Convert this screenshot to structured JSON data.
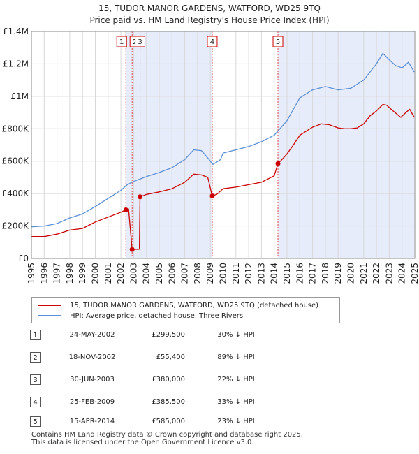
{
  "title_line1": "15, TUDOR MANOR GARDENS, WATFORD, WD25 9TQ",
  "title_line2": "Price paid vs. HM Land Registry's House Price Index (HPI)",
  "chart_data": {
    "type": "line",
    "x_range": [
      1995,
      2025
    ],
    "ylim": [
      0,
      1400000
    ],
    "y_ticks": [
      0,
      200000,
      400000,
      600000,
      800000,
      1000000,
      1200000,
      1400000
    ],
    "y_tick_labels": [
      "£0",
      "£200K",
      "£400K",
      "£600K",
      "£800K",
      "£1M",
      "£1.2M",
      "£1.4M"
    ],
    "x_ticks": [
      1995,
      1996,
      1997,
      1998,
      1999,
      2000,
      2001,
      2002,
      2003,
      2004,
      2005,
      2006,
      2007,
      2008,
      2009,
      2010,
      2011,
      2012,
      2013,
      2014,
      2015,
      2016,
      2017,
      2018,
      2019,
      2020,
      2021,
      2022,
      2023,
      2024,
      2025
    ],
    "x_tick_labels": [
      "1995",
      "1996",
      "1997",
      "1998",
      "1999",
      "2000",
      "2001",
      "2002",
      "2003",
      "2004",
      "2005",
      "2006",
      "2007",
      "2008",
      "2009",
      "2010",
      "2011",
      "2012",
      "2013",
      "2014",
      "2015",
      "2016",
      "2017",
      "2018",
      "2019",
      "2020",
      "2021",
      "2022",
      "2023",
      "2024",
      "2025"
    ],
    "shaded_periods": [
      [
        2002.39,
        2009.15
      ],
      [
        2014.29,
        2024.95
      ]
    ],
    "series": [
      {
        "name": "15, TUDOR MANOR GARDENS, WATFORD, WD25 9TQ (detached house)",
        "color": "#cc0000",
        "points": [
          [
            1995.0,
            135000
          ],
          [
            1996.0,
            135000
          ],
          [
            1997.0,
            150000
          ],
          [
            1998.0,
            175000
          ],
          [
            1999.0,
            185000
          ],
          [
            2000.0,
            225000
          ],
          [
            2001.0,
            255000
          ],
          [
            2002.0,
            285000
          ],
          [
            2002.39,
            299500
          ],
          [
            2002.6,
            305000
          ],
          [
            2002.88,
            55400
          ],
          [
            2003.0,
            56000
          ],
          [
            2003.45,
            57000
          ],
          [
            2003.5,
            380000
          ],
          [
            2004.0,
            395000
          ],
          [
            2005.0,
            410000
          ],
          [
            2006.0,
            430000
          ],
          [
            2007.0,
            470000
          ],
          [
            2007.7,
            520000
          ],
          [
            2008.3,
            515000
          ],
          [
            2008.8,
            500000
          ],
          [
            2009.15,
            385500
          ],
          [
            2009.5,
            395000
          ],
          [
            2010.0,
            430000
          ],
          [
            2011.0,
            440000
          ],
          [
            2012.0,
            455000
          ],
          [
            2013.0,
            470000
          ],
          [
            2014.0,
            510000
          ],
          [
            2014.29,
            585000
          ],
          [
            2014.6,
            610000
          ],
          [
            2015.0,
            645000
          ],
          [
            2015.5,
            700000
          ],
          [
            2016.0,
            760000
          ],
          [
            2017.0,
            810000
          ],
          [
            2017.7,
            830000
          ],
          [
            2018.3,
            825000
          ],
          [
            2019.0,
            805000
          ],
          [
            2019.5,
            800000
          ],
          [
            2020.0,
            800000
          ],
          [
            2020.5,
            805000
          ],
          [
            2021.0,
            830000
          ],
          [
            2021.5,
            880000
          ],
          [
            2022.0,
            910000
          ],
          [
            2022.5,
            950000
          ],
          [
            2022.8,
            945000
          ],
          [
            2023.3,
            910000
          ],
          [
            2023.9,
            870000
          ],
          [
            2024.3,
            900000
          ],
          [
            2024.6,
            920000
          ],
          [
            2024.95,
            870000
          ]
        ]
      },
      {
        "name": "HPI: Average price, detached house, Three Rivers",
        "color": "#5b8fd6",
        "points": [
          [
            1995.0,
            195000
          ],
          [
            1996.0,
            200000
          ],
          [
            1997.0,
            215000
          ],
          [
            1998.0,
            250000
          ],
          [
            1999.0,
            275000
          ],
          [
            2000.0,
            320000
          ],
          [
            2001.0,
            370000
          ],
          [
            2002.0,
            420000
          ],
          [
            2002.5,
            455000
          ],
          [
            2003.0,
            475000
          ],
          [
            2004.0,
            505000
          ],
          [
            2005.0,
            530000
          ],
          [
            2006.0,
            560000
          ],
          [
            2007.0,
            610000
          ],
          [
            2007.7,
            670000
          ],
          [
            2008.3,
            665000
          ],
          [
            2008.8,
            620000
          ],
          [
            2009.2,
            580000
          ],
          [
            2009.8,
            610000
          ],
          [
            2010.0,
            650000
          ],
          [
            2011.0,
            670000
          ],
          [
            2012.0,
            690000
          ],
          [
            2013.0,
            720000
          ],
          [
            2014.0,
            760000
          ],
          [
            2015.0,
            850000
          ],
          [
            2016.0,
            990000
          ],
          [
            2017.0,
            1040000
          ],
          [
            2018.0,
            1060000
          ],
          [
            2019.0,
            1040000
          ],
          [
            2020.0,
            1050000
          ],
          [
            2021.0,
            1100000
          ],
          [
            2022.0,
            1200000
          ],
          [
            2022.5,
            1265000
          ],
          [
            2023.0,
            1225000
          ],
          [
            2023.5,
            1190000
          ],
          [
            2024.0,
            1175000
          ],
          [
            2024.5,
            1210000
          ],
          [
            2024.95,
            1150000
          ]
        ]
      }
    ],
    "sale_markers": [
      {
        "label": "1",
        "x": 2002.39,
        "y": 299500
      },
      {
        "label": "2",
        "x": 2002.88,
        "y": 55400
      },
      {
        "label": "3",
        "x": 2003.5,
        "y": 380000
      },
      {
        "label": "4",
        "x": 2009.15,
        "y": 385500
      },
      {
        "label": "5",
        "x": 2014.29,
        "y": 585000
      }
    ]
  },
  "legend": {
    "property_label": "15, TUDOR MANOR GARDENS, WATFORD, WD25 9TQ (detached house)",
    "property_color": "#cc0000",
    "hpi_label": "HPI: Average price, detached house, Three Rivers",
    "hpi_color": "#5b8fd6"
  },
  "sales": [
    {
      "num": "1",
      "date": "24-MAY-2002",
      "price": "£299,500",
      "hpi": "30% ↓ HPI"
    },
    {
      "num": "2",
      "date": "18-NOV-2002",
      "price": "£55,400",
      "hpi": "89% ↓ HPI"
    },
    {
      "num": "3",
      "date": "30-JUN-2003",
      "price": "£380,000",
      "hpi": "22% ↓ HPI"
    },
    {
      "num": "4",
      "date": "25-FEB-2009",
      "price": "£385,500",
      "hpi": "33% ↓ HPI"
    },
    {
      "num": "5",
      "date": "15-APR-2014",
      "price": "£585,000",
      "hpi": "23% ↓ HPI"
    }
  ],
  "footer": {
    "line1": "Contains HM Land Registry data © Crown copyright and database right 2025.",
    "line2": "This data is licensed under the Open Government Licence v3.0."
  }
}
